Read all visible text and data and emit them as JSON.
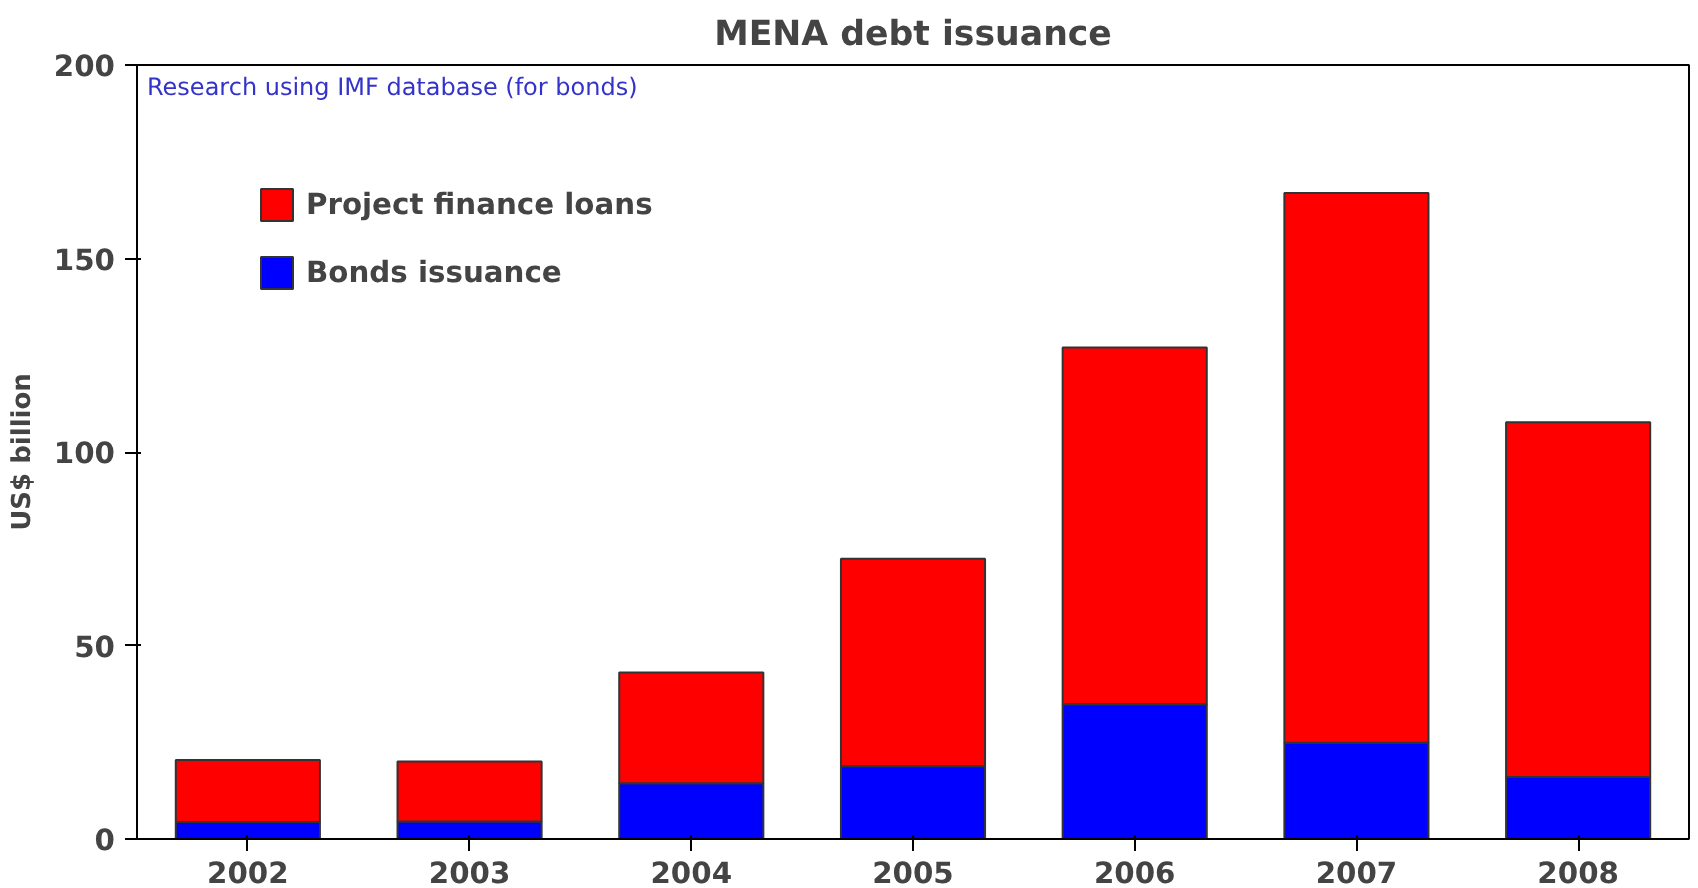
{
  "chart_data": {
    "type": "bar",
    "title": "MENA debt issuance",
    "ylabel": "US$ billion",
    "stacked": true,
    "categories": [
      "2002",
      "2003",
      "2004",
      "2005",
      "2006",
      "2007",
      "2008"
    ],
    "series": [
      {
        "name": "Bonds issuance",
        "color": "#0000ff",
        "values": [
          4.4,
          4.5,
          14.4,
          18.8,
          34.8,
          24.9,
          16
        ]
      },
      {
        "name": "Project finance loans",
        "color": "#ff0000",
        "values": [
          16,
          15.5,
          28.6,
          53.6,
          92.2,
          142,
          91.7
        ]
      }
    ],
    "ylim": [
      0,
      200
    ],
    "yticks": [
      0,
      50,
      100,
      150,
      200
    ],
    "grid": false,
    "legend": "top left",
    "annotations": [
      "Research using IMF database (for bonds)"
    ]
  }
}
